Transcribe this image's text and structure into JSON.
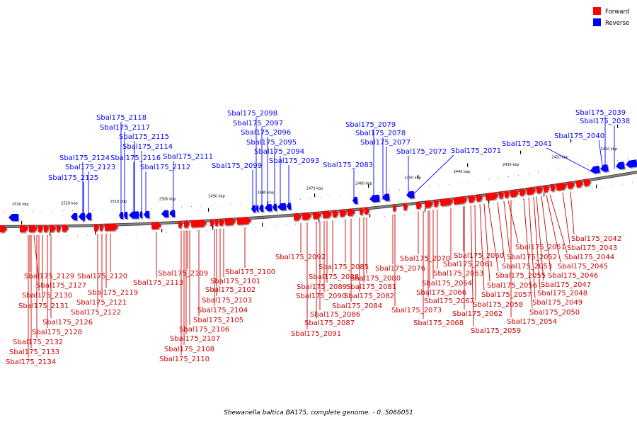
{
  "caption": "Shewanella baltica BA175, complete genome. - 0..5066051",
  "legend": [
    {
      "label": "Forward",
      "color": "#ff0000"
    },
    {
      "label": "Reverse",
      "color": "#0000ff"
    }
  ],
  "colors": {
    "forward": "#ff0000",
    "reverse": "#0000ff",
    "backbone": "#808080"
  },
  "ticks": [
    {
      "label": "2530 kbp",
      "kb": 2530
    },
    {
      "label": "2520 kbp",
      "kb": 2520
    },
    {
      "label": "2510 kbp",
      "kb": 2510
    },
    {
      "label": "2500 kbp",
      "kb": 2500
    },
    {
      "label": "2490 kbp",
      "kb": 2490
    },
    {
      "label": "2480 kbp",
      "kb": 2480
    },
    {
      "label": "2470 kbp",
      "kb": 2470
    },
    {
      "label": "2460 kbp",
      "kb": 2460
    },
    {
      "label": "2450 kbp",
      "kb": 2450
    },
    {
      "label": "2440 kbp",
      "kb": 2440
    },
    {
      "label": "2430 kbp",
      "kb": 2430
    },
    {
      "label": "2420 kbp",
      "kb": 2420
    },
    {
      "label": "2410 kbp",
      "kb": 2410
    }
  ],
  "reverse_genes": [
    "Sbal175_2125",
    "Sbal175_2124",
    "Sbal175_2123",
    "Sbal175_2118",
    "Sbal175_2117",
    "Sbal175_2116",
    "Sbal175_2115",
    "Sbal175_2114",
    "Sbal175_2112",
    "Sbal175_2111",
    "Sbal175_2099",
    "Sbal175_2098",
    "Sbal175_2097",
    "Sbal175_2096",
    "Sbal175_2095",
    "Sbal175_2094",
    "Sbal175_2093",
    "Sbal175_2083",
    "Sbal175_2079",
    "Sbal175_2078",
    "Sbal175_2077",
    "Sbal175_2072",
    "Sbal175_2071",
    "Sbal175_2041",
    "Sbal175_2040",
    "Sbal175_2039",
    "Sbal175_2038"
  ],
  "forward_genes": [
    "Sbal175_2129",
    "Sbal175_2127",
    "Sbal175_2130",
    "Sbal175_2131",
    "Sbal175_2126",
    "Sbal175_2128",
    "Sbal175_2132",
    "Sbal175_2133",
    "Sbal175_2134",
    "Sbal175_2120",
    "Sbal175_2119",
    "Sbal175_2121",
    "Sbal175_2122",
    "Sbal175_2113",
    "Sbal175_2109",
    "Sbal175_2110",
    "Sbal175_2108",
    "Sbal175_2107",
    "Sbal175_2106",
    "Sbal175_2105",
    "Sbal175_2104",
    "Sbal175_2103",
    "Sbal175_2102",
    "Sbal175_2101",
    "Sbal175_2100",
    "Sbal175_2092",
    "Sbal175_2091",
    "Sbal175_2087",
    "Sbal175_2086",
    "Sbal175_2090",
    "Sbal175_2089",
    "Sbal175_2088",
    "Sbal175_2085",
    "Sbal175_2084",
    "Sbal175_2082",
    "Sbal175_2081",
    "Sbal175_2080",
    "Sbal175_2076",
    "Sbal175_2073",
    "Sbal175_2070",
    "Sbal175_2068",
    "Sbal175_2067",
    "Sbal175_2066",
    "Sbal175_2064",
    "Sbal175_2063",
    "Sbal175_2062",
    "Sbal175_2061",
    "Sbal175_2060",
    "Sbal175_2059",
    "Sbal175_2058",
    "Sbal175_2057",
    "Sbal175_2056",
    "Sbal175_2055",
    "Sbal175_2054",
    "Sbal175_2053",
    "Sbal175_2052",
    "Sbal175_2051",
    "Sbal175_2050",
    "Sbal175_2049",
    "Sbal175_2048",
    "Sbal175_2047",
    "Sbal175_2046",
    "Sbal175_2045",
    "Sbal175_2044",
    "Sbal175_2043",
    "Sbal175_2042"
  ]
}
